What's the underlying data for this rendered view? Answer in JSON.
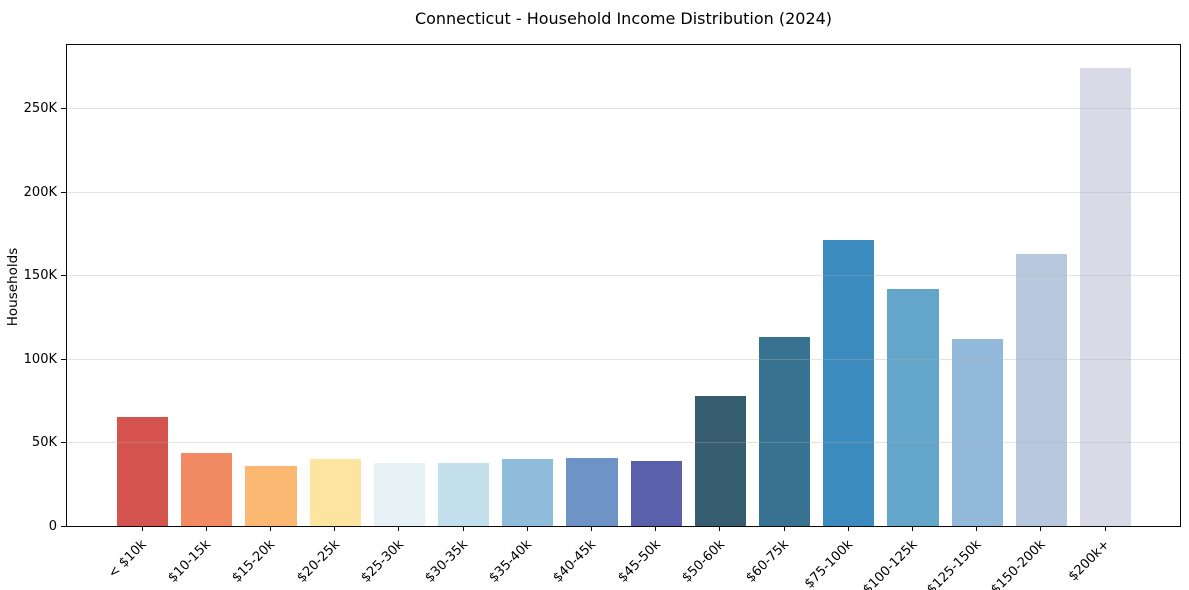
{
  "title": "Connecticut - Household Income Distribution (2024)",
  "chart_data": {
    "type": "bar",
    "title": "Connecticut - Household Income Distribution (2024)",
    "xlabel": "",
    "ylabel": "Households",
    "categories": [
      "< $10k",
      "$10-15k",
      "$15-20k",
      "$20-25k",
      "$25-30k",
      "$30-35k",
      "$35-40k",
      "$40-45k",
      "$45-50k",
      "$50-60k",
      "$60-75k",
      "$75-100k",
      "$100-125k",
      "$125-150k",
      "$150-200k",
      "$200k+"
    ],
    "values": [
      65000,
      44000,
      36000,
      40000,
      38000,
      38000,
      40000,
      41000,
      39000,
      78000,
      113000,
      171000,
      142000,
      112000,
      163000,
      274000
    ],
    "bar_colors": [
      "#d5534e",
      "#f18963",
      "#fab873",
      "#fde4a1",
      "#e5f1f4",
      "#c3dfeb",
      "#90bcdb",
      "#6e94c7",
      "#5a60a9",
      "#375d70",
      "#377390",
      "#3b8bbf",
      "#63a6c9",
      "#93b9da",
      "#b8c9df",
      "#d8dae7"
    ],
    "ylim": [
      0,
      289000
    ],
    "yticks": [
      0,
      50000,
      100000,
      150000,
      200000,
      250000
    ],
    "ytick_labels": [
      "0",
      "50K",
      "100K",
      "150K",
      "200K",
      "250K"
    ],
    "legend": "none",
    "grid": "horizontal",
    "background_color": "#ffffff",
    "spine_color": "#000000"
  }
}
